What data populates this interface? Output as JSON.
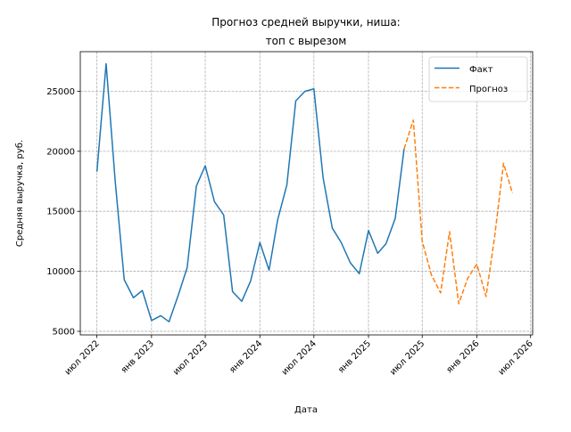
{
  "chart_data": {
    "type": "line",
    "title": [
      "Прогноз средней выручки, ниша:",
      "топ с вырезом"
    ],
    "xlabel": "Дата",
    "ylabel": "Средняя выручка, руб.",
    "xlim": [
      "2022-05-06",
      "2026-07-08"
    ],
    "ylim": [
      4700,
      28300
    ],
    "x_ticks": [
      {
        "date": "2022-07-01",
        "label": "июл 2022"
      },
      {
        "date": "2023-01-01",
        "label": "янв 2023"
      },
      {
        "date": "2023-07-01",
        "label": "июл 2023"
      },
      {
        "date": "2024-01-01",
        "label": "янв 2024"
      },
      {
        "date": "2024-07-01",
        "label": "июл 2024"
      },
      {
        "date": "2025-01-01",
        "label": "янв 2025"
      },
      {
        "date": "2025-07-01",
        "label": "июл 2025"
      },
      {
        "date": "2026-01-01",
        "label": "янв 2026"
      },
      {
        "date": "2026-07-01",
        "label": "июл 2026"
      }
    ],
    "y_ticks": [
      5000,
      10000,
      15000,
      20000,
      25000
    ],
    "y_tick_labels": [
      "5000",
      "10000",
      "15000",
      "20000",
      "25000"
    ],
    "grid": true,
    "legend_position": "top-right",
    "series": [
      {
        "name": "Факт",
        "color": "#1f77b4",
        "style": "solid",
        "points": [
          {
            "x": "2022-07-01",
            "y": 18300
          },
          {
            "x": "2022-08-01",
            "y": 27300
          },
          {
            "x": "2022-09-01",
            "y": 17400
          },
          {
            "x": "2022-10-01",
            "y": 9300
          },
          {
            "x": "2022-11-01",
            "y": 7800
          },
          {
            "x": "2022-12-01",
            "y": 8400
          },
          {
            "x": "2023-01-01",
            "y": 5900
          },
          {
            "x": "2023-02-01",
            "y": 6300
          },
          {
            "x": "2023-03-01",
            "y": 5800
          },
          {
            "x": "2023-04-01",
            "y": 8000
          },
          {
            "x": "2023-05-01",
            "y": 10300
          },
          {
            "x": "2023-06-01",
            "y": 17100
          },
          {
            "x": "2023-07-01",
            "y": 18800
          },
          {
            "x": "2023-08-01",
            "y": 15800
          },
          {
            "x": "2023-09-01",
            "y": 14700
          },
          {
            "x": "2023-10-01",
            "y": 8300
          },
          {
            "x": "2023-11-01",
            "y": 7500
          },
          {
            "x": "2023-12-01",
            "y": 9200
          },
          {
            "x": "2024-01-01",
            "y": 12400
          },
          {
            "x": "2024-02-01",
            "y": 10100
          },
          {
            "x": "2024-03-01",
            "y": 14300
          },
          {
            "x": "2024-04-01",
            "y": 17200
          },
          {
            "x": "2024-05-01",
            "y": 24200
          },
          {
            "x": "2024-06-01",
            "y": 25000
          },
          {
            "x": "2024-07-01",
            "y": 25200
          },
          {
            "x": "2024-08-01",
            "y": 17800
          },
          {
            "x": "2024-09-01",
            "y": 13600
          },
          {
            "x": "2024-10-01",
            "y": 12400
          },
          {
            "x": "2024-11-01",
            "y": 10700
          },
          {
            "x": "2024-12-01",
            "y": 9800
          },
          {
            "x": "2025-01-01",
            "y": 13400
          },
          {
            "x": "2025-02-01",
            "y": 11500
          },
          {
            "x": "2025-03-01",
            "y": 12300
          },
          {
            "x": "2025-04-01",
            "y": 14400
          },
          {
            "x": "2025-05-01",
            "y": 20200
          }
        ]
      },
      {
        "name": "Прогноз",
        "color": "#ff7f0e",
        "style": "dashed",
        "points": [
          {
            "x": "2025-05-01",
            "y": 20200
          },
          {
            "x": "2025-06-01",
            "y": 22600
          },
          {
            "x": "2025-07-01",
            "y": 12500
          },
          {
            "x": "2025-08-01",
            "y": 9700
          },
          {
            "x": "2025-09-01",
            "y": 8200
          },
          {
            "x": "2025-10-01",
            "y": 13300
          },
          {
            "x": "2025-11-01",
            "y": 7300
          },
          {
            "x": "2025-12-01",
            "y": 9400
          },
          {
            "x": "2026-01-01",
            "y": 10600
          },
          {
            "x": "2026-02-01",
            "y": 7900
          },
          {
            "x": "2026-03-01",
            "y": 12700
          },
          {
            "x": "2026-04-01",
            "y": 19000
          },
          {
            "x": "2026-05-01",
            "y": 16500
          }
        ]
      }
    ]
  }
}
